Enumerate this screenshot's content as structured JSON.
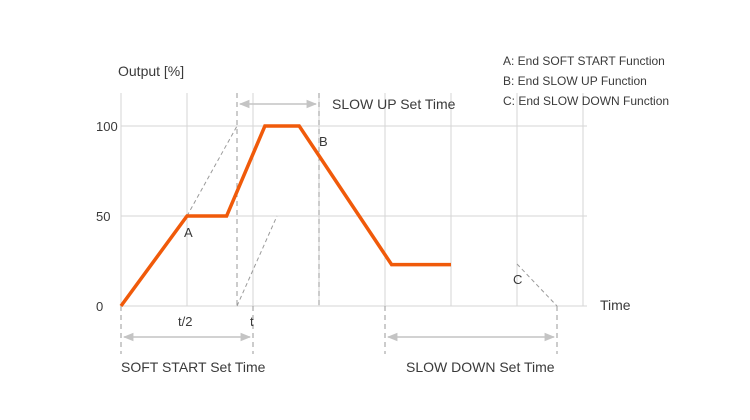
{
  "chart_data": {
    "type": "line",
    "title": "",
    "ylabel": "Output [%]",
    "xlabel": "Time",
    "ylim": [
      0,
      100
    ],
    "y_ticks": [
      "0",
      "50",
      "100"
    ],
    "x_ticks": [
      "t/2",
      "t"
    ],
    "grid": true,
    "series": [
      {
        "color": "#F05A0A",
        "x": [
          0,
          0.5,
          0.8,
          1.09,
          1.35,
          2.05,
          2.5
        ],
        "y": [
          0,
          50,
          50,
          100,
          100,
          23,
          23
        ]
      }
    ],
    "markers": [
      {
        "label": "A"
      },
      {
        "label": "B"
      },
      {
        "label": "C"
      }
    ],
    "legend": [
      "A: End SOFT START Function",
      "B: End SLOW UP Function",
      "C: End SLOW DOWN Function"
    ],
    "spans": {
      "slow_up": "SLOW UP Set Time",
      "soft_start": "SOFT START Set Time",
      "slow_down": "SLOW DOWN Set Time"
    },
    "colors": {
      "line": "#F05A0A",
      "grid": "#d6d6d6",
      "dashed": "#9a9a9a",
      "arrow": "#c4c4c4"
    }
  }
}
